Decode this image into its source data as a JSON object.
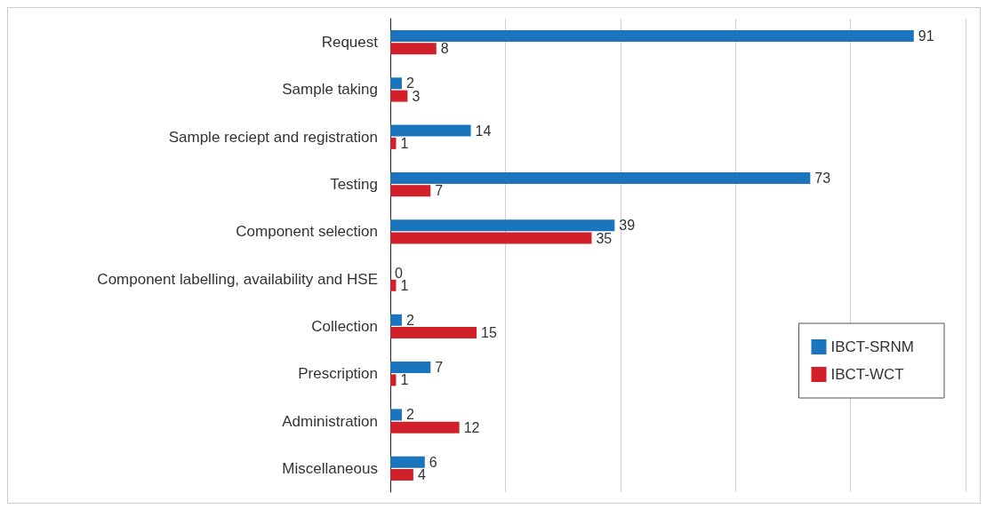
{
  "chart_data": {
    "type": "bar",
    "orientation": "horizontal",
    "categories": [
      "Request",
      "Sample taking",
      "Sample reciept and registration",
      "Testing",
      "Component selection",
      "Component labelling, availability and HSE",
      "Collection",
      "Prescription",
      "Administration",
      "Miscellaneous"
    ],
    "series": [
      {
        "name": "IBCT-SRNM",
        "color": "#1a75bc",
        "values": [
          91,
          2,
          14,
          73,
          39,
          0,
          2,
          7,
          2,
          6
        ]
      },
      {
        "name": "IBCT-WCT",
        "color": "#d1202a",
        "values": [
          8,
          3,
          1,
          7,
          35,
          1,
          15,
          1,
          12,
          4
        ]
      }
    ],
    "tick_labels": "y",
    "grid": "x",
    "legend": "right",
    "data_labels": true
  }
}
